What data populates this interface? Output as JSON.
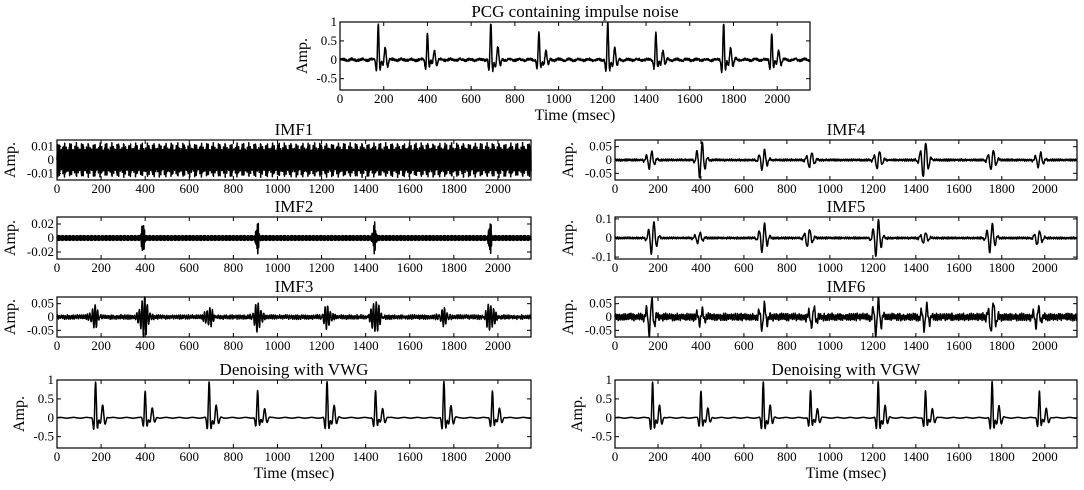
{
  "chart_data": [
    {
      "id": "pcg",
      "type": "line",
      "title": "PCG containing impulse noise",
      "xlabel": "Time (msec)",
      "ylabel": "Amp.",
      "xlim": [
        0,
        2150
      ],
      "ylim": [
        -0.8,
        1
      ],
      "xticks": [
        0,
        200,
        400,
        600,
        800,
        1000,
        1200,
        1400,
        1600,
        1800,
        2000
      ],
      "xtick_labels": [
        "0",
        "200",
        "400",
        "600",
        "800",
        "1000",
        "1200",
        "1400",
        "1600",
        "1800",
        "2000"
      ],
      "yticks": [
        1,
        0.5,
        0,
        -0.5
      ],
      "ytick_labels": [
        "1",
        "0.5",
        "0",
        "-0.5"
      ],
      "signal": {
        "kind": "pcg",
        "beats": [
          175,
          400,
          690,
          910,
          1225,
          1445,
          1755,
          1975
        ],
        "amplitude": 0.95,
        "noise": 0.06
      }
    },
    {
      "id": "imf1",
      "type": "line",
      "title": "IMF1",
      "xlabel": "",
      "ylabel": "Amp.",
      "xlim": [
        0,
        2150
      ],
      "ylim": [
        -0.015,
        0.015
      ],
      "xticks": [
        0,
        200,
        400,
        600,
        800,
        1000,
        1200,
        1400,
        1600,
        1800,
        2000
      ],
      "xtick_labels": [
        "0",
        "200",
        "400",
        "600",
        "800",
        "1000",
        "1200",
        "1400",
        "1600",
        "1800",
        "2000"
      ],
      "yticks": [
        0.01,
        0,
        -0.01
      ],
      "ytick_labels": [
        "0.01",
        "0",
        "-0.01"
      ],
      "signal": {
        "kind": "carrier",
        "amplitude": 0.013,
        "mod_period": 27
      }
    },
    {
      "id": "imf2",
      "type": "line",
      "title": "IMF2",
      "xlabel": "",
      "ylabel": "Amp.",
      "xlim": [
        0,
        2150
      ],
      "ylim": [
        -0.03,
        0.03
      ],
      "xticks": [
        0,
        200,
        400,
        600,
        800,
        1000,
        1200,
        1400,
        1600,
        1800,
        2000
      ],
      "xtick_labels": [
        "0",
        "200",
        "400",
        "600",
        "800",
        "1000",
        "1200",
        "1400",
        "1600",
        "1800",
        "2000"
      ],
      "yticks": [
        0.02,
        0,
        -0.02
      ],
      "ytick_labels": [
        "0.02",
        "0",
        "-0.02"
      ],
      "signal": {
        "kind": "carrier_bursts",
        "amplitude": 0.004,
        "mod_period": 33,
        "bursts": [
          390,
          910,
          1440,
          1965
        ],
        "burst_amplitude": 0.02
      }
    },
    {
      "id": "imf3",
      "type": "line",
      "title": "IMF3",
      "xlabel": "",
      "ylabel": "Amp.",
      "xlim": [
        0,
        2150
      ],
      "ylim": [
        -0.075,
        0.075
      ],
      "xticks": [
        0,
        200,
        400,
        600,
        800,
        1000,
        1200,
        1400,
        1600,
        1800,
        2000
      ],
      "xtick_labels": [
        "0",
        "200",
        "400",
        "600",
        "800",
        "1000",
        "1200",
        "1400",
        "1600",
        "1800",
        "2000"
      ],
      "yticks": [
        0.05,
        0,
        -0.05
      ],
      "ytick_labels": [
        "0.05",
        "0",
        "-0.05"
      ],
      "signal": {
        "kind": "bursts",
        "noise": 0.006,
        "bursts": [
          [
            170,
            0.04
          ],
          [
            395,
            0.075
          ],
          [
            690,
            0.035
          ],
          [
            910,
            0.05
          ],
          [
            1225,
            0.04
          ],
          [
            1445,
            0.06
          ],
          [
            1755,
            0.03
          ],
          [
            1965,
            0.05
          ]
        ]
      }
    },
    {
      "id": "imf4",
      "type": "line",
      "title": "IMF4",
      "xlabel": "",
      "ylabel": "Amp.",
      "xlim": [
        0,
        2150
      ],
      "ylim": [
        -0.075,
        0.075
      ],
      "xticks": [
        0,
        200,
        400,
        600,
        800,
        1000,
        1200,
        1400,
        1600,
        1800,
        2000
      ],
      "xtick_labels": [
        "0",
        "200",
        "400",
        "600",
        "800",
        "1000",
        "1200",
        "1400",
        "1600",
        "1800",
        "2000"
      ],
      "yticks": [
        0.05,
        0,
        -0.05
      ],
      "ytick_labels": [
        "0.05",
        "0",
        "-0.05"
      ],
      "signal": {
        "kind": "bursts",
        "noise": 0.003,
        "bursts": [
          [
            165,
            0.035
          ],
          [
            400,
            0.07
          ],
          [
            690,
            0.04
          ],
          [
            910,
            0.03
          ],
          [
            1225,
            0.035
          ],
          [
            1440,
            0.07
          ],
          [
            1755,
            0.04
          ],
          [
            1975,
            0.03
          ]
        ]
      }
    },
    {
      "id": "imf5",
      "type": "line",
      "title": "IMF5",
      "xlabel": "",
      "ylabel": "Amp.",
      "xlim": [
        0,
        2150
      ],
      "ylim": [
        -0.11,
        0.11
      ],
      "xticks": [
        0,
        200,
        400,
        600,
        800,
        1000,
        1200,
        1400,
        1600,
        1800,
        2000
      ],
      "xtick_labels": [
        "0",
        "200",
        "400",
        "600",
        "800",
        "1000",
        "1200",
        "1400",
        "1600",
        "1800",
        "2000"
      ],
      "yticks": [
        0.1,
        0,
        -0.1
      ],
      "ytick_labels": [
        "0.1",
        "0",
        "-0.1"
      ],
      "signal": {
        "kind": "bursts",
        "noise": 0.004,
        "bursts": [
          [
            175,
            0.09
          ],
          [
            390,
            0.03
          ],
          [
            690,
            0.08
          ],
          [
            900,
            0.05
          ],
          [
            1220,
            0.1
          ],
          [
            1440,
            0.03
          ],
          [
            1750,
            0.08
          ],
          [
            1970,
            0.04
          ]
        ]
      }
    },
    {
      "id": "imf6",
      "type": "line",
      "title": "IMF6",
      "xlabel": "",
      "ylabel": "Amp.",
      "xlim": [
        0,
        2150
      ],
      "ylim": [
        -0.075,
        0.075
      ],
      "xticks": [
        0,
        200,
        400,
        600,
        800,
        1000,
        1200,
        1400,
        1600,
        1800,
        2000
      ],
      "xtick_labels": [
        "0",
        "200",
        "400",
        "600",
        "800",
        "1000",
        "1200",
        "1400",
        "1600",
        "1800",
        "2000"
      ],
      "yticks": [
        0.05,
        0,
        -0.05
      ],
      "ytick_labels": [
        "0.05",
        "0",
        "-0.05"
      ],
      "signal": {
        "kind": "bursts",
        "noise": 0.01,
        "bursts": [
          [
            165,
            0.07
          ],
          [
            400,
            0.03
          ],
          [
            690,
            0.05
          ],
          [
            920,
            0.04
          ],
          [
            1220,
            0.07
          ],
          [
            1445,
            0.05
          ],
          [
            1755,
            0.06
          ],
          [
            1965,
            0.04
          ]
        ]
      }
    },
    {
      "id": "vwg",
      "type": "line",
      "title": "Denoising with VWG",
      "xlabel": "Time (msec)",
      "ylabel": "Amp.",
      "xlim": [
        0,
        2150
      ],
      "ylim": [
        -0.8,
        1
      ],
      "xticks": [
        0,
        200,
        400,
        600,
        800,
        1000,
        1200,
        1400,
        1600,
        1800,
        2000
      ],
      "xtick_labels": [
        "0",
        "200",
        "400",
        "600",
        "800",
        "1000",
        "1200",
        "1400",
        "1600",
        "1800",
        "2000"
      ],
      "yticks": [
        1,
        0.5,
        0,
        -0.5
      ],
      "ytick_labels": [
        "1",
        "0.5",
        "0",
        "-0.5"
      ],
      "signal": {
        "kind": "pcg",
        "beats": [
          175,
          400,
          690,
          910,
          1225,
          1445,
          1755,
          1975
        ],
        "amplitude": 0.95,
        "noise": 0.0
      }
    },
    {
      "id": "vgw",
      "type": "line",
      "title": "Denoising with VGW",
      "xlabel": "Time (msec)",
      "ylabel": "Amp.",
      "xlim": [
        0,
        2150
      ],
      "ylim": [
        -0.8,
        1
      ],
      "xticks": [
        0,
        200,
        400,
        600,
        800,
        1000,
        1200,
        1400,
        1600,
        1800,
        2000
      ],
      "xtick_labels": [
        "0",
        "200",
        "400",
        "600",
        "800",
        "1000",
        "1200",
        "1400",
        "1600",
        "1800",
        "2000"
      ],
      "yticks": [
        1,
        0.5,
        0,
        -0.5
      ],
      "ytick_labels": [
        "1",
        "0.5",
        "0",
        "-0.5"
      ],
      "signal": {
        "kind": "pcg",
        "beats": [
          175,
          400,
          690,
          910,
          1225,
          1445,
          1755,
          1975
        ],
        "amplitude": 0.95,
        "noise": 0.0
      }
    }
  ]
}
